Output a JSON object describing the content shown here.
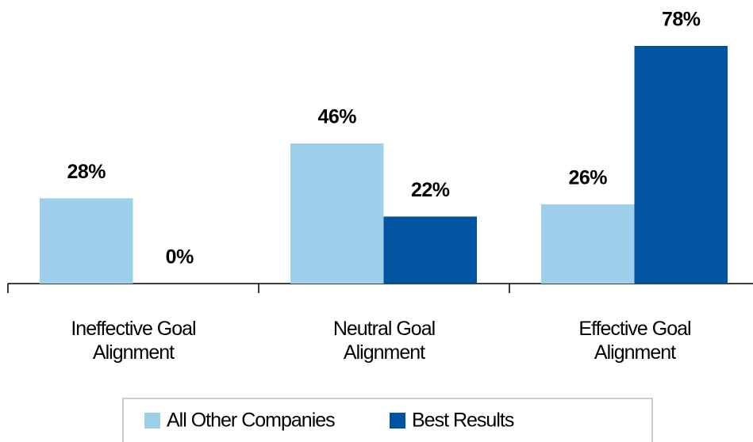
{
  "chart_data": {
    "type": "bar",
    "categories": [
      "Ineffective Goal Alignment",
      "Neutral Goal Alignment",
      "Effective Goal Alignment"
    ],
    "series": [
      {
        "name": "All Other Companies",
        "color": "#9dcfeb",
        "values": [
          28,
          46,
          26
        ],
        "value_labels": [
          "28%",
          "46%",
          "26%"
        ]
      },
      {
        "name": "Best Results",
        "color": "#0054a0",
        "values": [
          0,
          22,
          78
        ],
        "value_labels": [
          "0%",
          "22%",
          "78%"
        ]
      }
    ]
  }
}
